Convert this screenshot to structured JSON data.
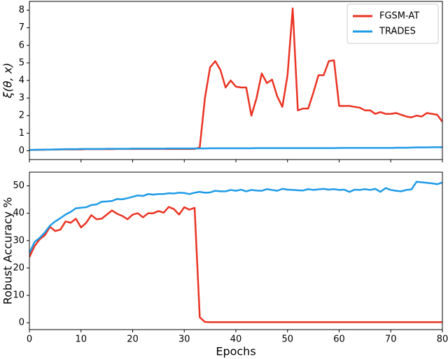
{
  "chart_data": [
    {
      "type": "line",
      "ylabel": "ξ(θ, x)",
      "xlim": [
        0,
        80
      ],
      "ylim": [
        -0.5,
        8.5
      ],
      "xticks": [
        0,
        10,
        20,
        30,
        40,
        50,
        60,
        70,
        80
      ],
      "yticks": [
        0,
        1,
        2,
        3,
        4,
        5,
        6,
        7,
        8
      ],
      "legend": "upper right",
      "x": [
        0,
        1,
        2,
        3,
        4,
        5,
        6,
        7,
        8,
        9,
        10,
        11,
        12,
        13,
        14,
        15,
        16,
        17,
        18,
        19,
        20,
        21,
        22,
        23,
        24,
        25,
        26,
        27,
        28,
        29,
        30,
        31,
        32,
        33,
        34,
        35,
        36,
        37,
        38,
        39,
        40,
        41,
        42,
        43,
        44,
        45,
        46,
        47,
        48,
        49,
        50,
        51,
        52,
        53,
        54,
        55,
        56,
        57,
        58,
        59,
        60,
        61,
        62,
        63,
        64,
        65,
        66,
        67,
        68,
        69,
        70,
        71,
        72,
        73,
        74,
        75,
        76,
        77,
        78,
        79,
        80
      ],
      "series": [
        {
          "name": "FGSM-AT",
          "color": "#ea3323",
          "values": [
            0.05,
            0.05,
            0.06,
            0.06,
            0.07,
            0.07,
            0.08,
            0.08,
            0.08,
            0.08,
            0.08,
            0.09,
            0.09,
            0.09,
            0.09,
            0.09,
            0.09,
            0.1,
            0.1,
            0.1,
            0.1,
            0.1,
            0.1,
            0.1,
            0.1,
            0.1,
            0.1,
            0.1,
            0.1,
            0.1,
            0.1,
            0.1,
            0.1,
            0.2,
            3.0,
            4.75,
            5.1,
            4.6,
            3.6,
            4.0,
            3.65,
            3.6,
            3.6,
            2.0,
            3.0,
            4.4,
            3.85,
            4.05,
            3.1,
            2.5,
            4.3,
            8.1,
            2.3,
            2.4,
            2.4,
            3.3,
            4.3,
            4.3,
            5.1,
            5.15,
            2.55,
            2.55,
            2.55,
            2.5,
            2.45,
            2.3,
            2.3,
            2.1,
            2.2,
            2.1,
            2.1,
            2.15,
            2.05,
            1.95,
            1.9,
            2.0,
            1.95,
            2.15,
            2.1,
            2.05,
            1.65
          ]
        },
        {
          "name": "TRADES",
          "color": "#1f9be6",
          "values": [
            0.05,
            0.06,
            0.06,
            0.07,
            0.07,
            0.08,
            0.08,
            0.09,
            0.09,
            0.09,
            0.1,
            0.1,
            0.1,
            0.1,
            0.1,
            0.11,
            0.11,
            0.11,
            0.11,
            0.11,
            0.12,
            0.12,
            0.12,
            0.12,
            0.12,
            0.12,
            0.12,
            0.13,
            0.13,
            0.13,
            0.13,
            0.13,
            0.13,
            0.13,
            0.13,
            0.14,
            0.14,
            0.14,
            0.14,
            0.14,
            0.14,
            0.14,
            0.14,
            0.14,
            0.15,
            0.15,
            0.15,
            0.15,
            0.15,
            0.15,
            0.15,
            0.15,
            0.15,
            0.15,
            0.15,
            0.15,
            0.15,
            0.15,
            0.15,
            0.15,
            0.16,
            0.16,
            0.16,
            0.16,
            0.16,
            0.16,
            0.16,
            0.16,
            0.16,
            0.16,
            0.16,
            0.17,
            0.17,
            0.17,
            0.18,
            0.19,
            0.19,
            0.19,
            0.2,
            0.2,
            0.2
          ]
        }
      ]
    },
    {
      "type": "line",
      "xlabel": "Epochs",
      "ylabel": "Robust Accuracy %",
      "xlim": [
        0,
        80
      ],
      "ylim": [
        -2.5,
        55
      ],
      "xticks": [
        0,
        10,
        20,
        30,
        40,
        50,
        60,
        70,
        80
      ],
      "yticks": [
        0,
        10,
        20,
        30,
        40,
        50
      ],
      "x": [
        0,
        1,
        2,
        3,
        4,
        5,
        6,
        7,
        8,
        9,
        10,
        11,
        12,
        13,
        14,
        15,
        16,
        17,
        18,
        19,
        20,
        21,
        22,
        23,
        24,
        25,
        26,
        27,
        28,
        29,
        30,
        31,
        32,
        33,
        34,
        35,
        36,
        37,
        38,
        39,
        40,
        41,
        42,
        43,
        44,
        45,
        46,
        47,
        48,
        49,
        50,
        51,
        52,
        53,
        54,
        55,
        56,
        57,
        58,
        59,
        60,
        61,
        62,
        63,
        64,
        65,
        66,
        67,
        68,
        69,
        70,
        71,
        72,
        73,
        74,
        75,
        76,
        77,
        78,
        79,
        80
      ],
      "series": [
        {
          "color": "#ea3323",
          "values": [
            24,
            28,
            30.5,
            32,
            35,
            33.5,
            34,
            37,
            36.5,
            38,
            34.8,
            36.5,
            39.3,
            37.8,
            38,
            39.5,
            41,
            39.8,
            39,
            37.8,
            39.5,
            40,
            38.5,
            40,
            40,
            40.8,
            40.2,
            42.3,
            41.5,
            39.5,
            42.2,
            41.3,
            42,
            2,
            0.3,
            0.2,
            0.2,
            0.2,
            0.2,
            0.2,
            0.2,
            0.2,
            0.2,
            0.2,
            0.2,
            0.2,
            0.2,
            0.2,
            0.2,
            0.2,
            0.2,
            0.2,
            0.2,
            0.2,
            0.2,
            0.2,
            0.2,
            0.2,
            0.2,
            0.2,
            0.2,
            0.2,
            0.2,
            0.2,
            0.2,
            0.2,
            0.2,
            0.2,
            0.2,
            0.2,
            0.2,
            0.2,
            0.2,
            0.2,
            0.2,
            0.2,
            0.2,
            0.2,
            0.2,
            0.2,
            0.2
          ]
        },
        {
          "color": "#1f9be6",
          "values": [
            25.5,
            29.5,
            31,
            33,
            35.5,
            37,
            38.2,
            39.5,
            40.5,
            41.8,
            42,
            42.2,
            43,
            43.2,
            44.2,
            44.3,
            44.5,
            45.2,
            45.1,
            45.5,
            46,
            46.5,
            46.3,
            47,
            46.8,
            47,
            47,
            47.3,
            47.2,
            47.5,
            47.4,
            47,
            47.5,
            47.8,
            47.5,
            47.6,
            48.2,
            48,
            48,
            48.5,
            48.2,
            48.6,
            48,
            48.5,
            48.3,
            48.2,
            48.8,
            48.5,
            48.2,
            48.9,
            48.6,
            48.5,
            48.4,
            48.3,
            48.8,
            48.5,
            48.7,
            48.9,
            48.6,
            48.8,
            48.5,
            48.6,
            47.8,
            48.6,
            48.5,
            48.8,
            48.5,
            48.9,
            47.8,
            49.2,
            48.5,
            48.2,
            48,
            48.5,
            48.7,
            51.5,
            51.3,
            51.1,
            50.9,
            50.6,
            51.2
          ]
        }
      ]
    }
  ]
}
